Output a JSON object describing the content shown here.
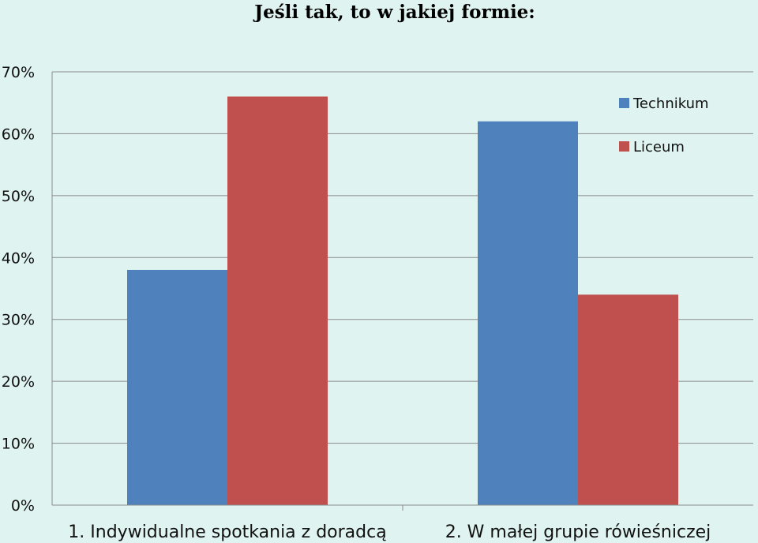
{
  "chart_data": {
    "type": "bar",
    "title": "Jeśli tak, to w jakiej formie:",
    "categories": [
      "1. Indywidualne spotkania z doradcą",
      "2. W małej grupie rówieśniczej"
    ],
    "series": [
      {
        "name": "Technikum",
        "values": [
          38,
          62
        ],
        "color": "#4f81bd"
      },
      {
        "name": "Liceum",
        "values": [
          66,
          34
        ],
        "color": "#c0504d"
      }
    ],
    "ylim": [
      0,
      70
    ],
    "yticks": [
      0,
      10,
      20,
      30,
      40,
      50,
      60,
      70
    ],
    "ytick_labels": [
      "0%",
      "10%",
      "20%",
      "30%",
      "40%",
      "50%",
      "60%",
      "70%"
    ],
    "xlabel": "",
    "ylabel": "",
    "grid": true,
    "legend_position": "top-right"
  }
}
